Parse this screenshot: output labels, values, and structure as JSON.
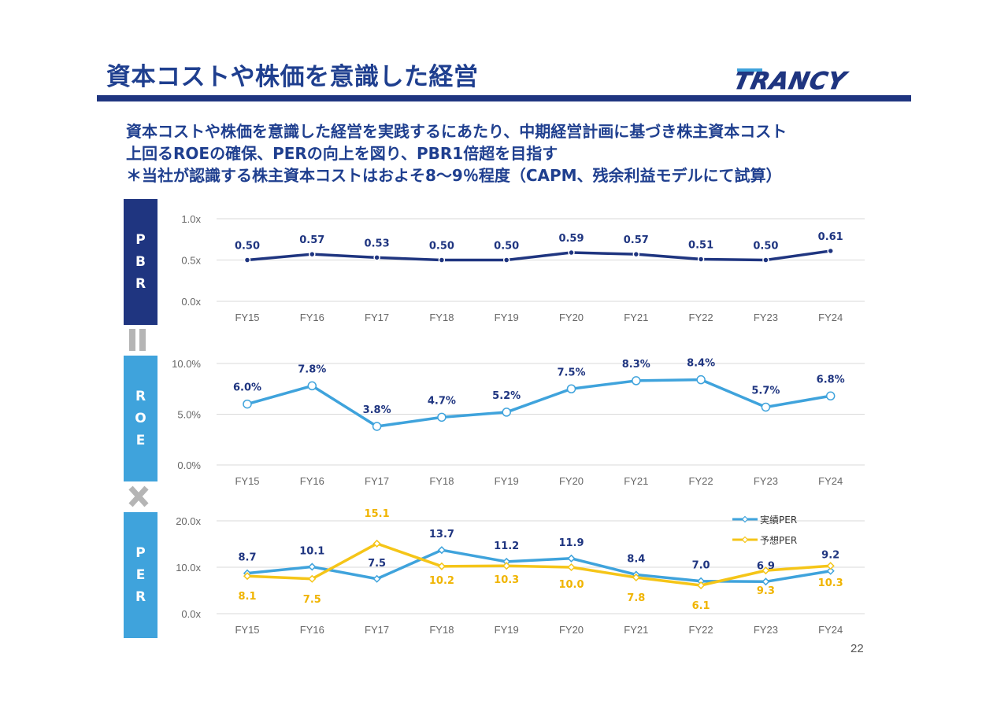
{
  "title": "資本コストや株価を意識した経営",
  "logo": {
    "text": "TRANCY"
  },
  "intro": [
    "資本コストや株価を意識した経営を実践するにあたり、中期経営計画に基づき株主資本コスト",
    "上回るROEの確保、PERの向上を図り、PBR1倍超を目指す",
    "＊当社が認識する株主資本コストはおよそ8～9％程度（CAPM、残余利益モデルにて試算）"
  ],
  "side_labels": {
    "pbr": [
      "P",
      "B",
      "R"
    ],
    "roe": [
      "R",
      "O",
      "E"
    ],
    "per": [
      "P",
      "E",
      "R"
    ]
  },
  "page_number": "22",
  "colors": {
    "navy": "#1f3580",
    "blue": "#3fa3dc",
    "yellow": "#f5c518",
    "grid": "#d9d9d9"
  },
  "chart_data": [
    {
      "type": "line",
      "categories": [
        "FY15",
        "FY16",
        "FY17",
        "FY18",
        "FY19",
        "FY20",
        "FY21",
        "FY22",
        "FY23",
        "FY24"
      ],
      "series": [
        {
          "values": [
            0.5,
            0.57,
            0.53,
            0.5,
            0.5,
            0.59,
            0.57,
            0.51,
            0.5,
            0.61
          ],
          "labels": [
            "0.50",
            "0.57",
            "0.53",
            "0.50",
            "0.50",
            "0.59",
            "0.57",
            "0.51",
            "0.50",
            "0.61"
          ],
          "color": "#1f3580"
        }
      ],
      "y_ticks": [
        "0.0x",
        "0.5x",
        "1.0x"
      ],
      "ylim": [
        0,
        1.0
      ],
      "grid": true
    },
    {
      "type": "line",
      "categories": [
        "FY15",
        "FY16",
        "FY17",
        "FY18",
        "FY19",
        "FY20",
        "FY21",
        "FY22",
        "FY23",
        "FY24"
      ],
      "series": [
        {
          "values": [
            6.0,
            7.8,
            3.8,
            4.7,
            5.2,
            7.5,
            8.3,
            8.4,
            5.7,
            6.8
          ],
          "labels": [
            "6.0%",
            "7.8%",
            "3.8%",
            "4.7%",
            "5.2%",
            "7.5%",
            "8.3%",
            "8.4%",
            "5.7%",
            "6.8%"
          ],
          "color": "#3fa3dc"
        }
      ],
      "y_ticks": [
        "0.0%",
        "5.0%",
        "10.0%"
      ],
      "ylim": [
        0,
        10
      ],
      "grid": true
    },
    {
      "type": "line",
      "categories": [
        "FY15",
        "FY16",
        "FY17",
        "FY18",
        "FY19",
        "FY20",
        "FY21",
        "FY22",
        "FY23",
        "FY24"
      ],
      "series": [
        {
          "name": "実績PER",
          "values": [
            8.7,
            10.1,
            7.5,
            13.7,
            11.2,
            11.9,
            8.4,
            7.0,
            6.9,
            9.2
          ],
          "labels": [
            "8.7",
            "10.1",
            "7.5",
            "13.7",
            "11.2",
            "11.9",
            "8.4",
            "7.0",
            "6.9",
            "9.2"
          ],
          "color": "#3fa3dc"
        },
        {
          "name": "予想PER",
          "values": [
            8.1,
            7.5,
            15.1,
            10.2,
            10.3,
            10.0,
            7.8,
            6.1,
            9.3,
            10.3
          ],
          "labels": [
            "8.1",
            "7.5",
            "15.1",
            "10.2",
            "10.3",
            "10.0",
            "7.8",
            "6.1",
            "9.3",
            "10.3"
          ],
          "color": "#f5c518"
        }
      ],
      "y_ticks": [
        "0.0x",
        "10.0x",
        "20.0x"
      ],
      "ylim": [
        0,
        20
      ],
      "legend": "top-right",
      "grid": true
    }
  ]
}
